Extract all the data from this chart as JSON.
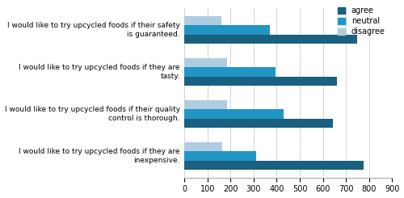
{
  "categories": [
    "I would like to try upcycled foods if their safety\nis guaranteed.",
    "I would like to try upcycled foods if they are\ntasty.",
    "I would like to try upcycled foods if their quality\ncontrol is thorough.",
    "I would like to try upcycled foods if they are\ninexpensive."
  ],
  "agree": [
    750,
    660,
    645,
    775
  ],
  "neutral": [
    370,
    395,
    430,
    310
  ],
  "disagree": [
    160,
    185,
    185,
    165
  ],
  "colors": {
    "agree": "#1a6080",
    "neutral": "#2196c4",
    "disagree": "#aecde0"
  },
  "xlim": [
    0,
    900
  ],
  "xticks": [
    0,
    100,
    200,
    300,
    400,
    500,
    600,
    700,
    800,
    900
  ],
  "bar_height": 0.22,
  "bar_spacing": 0.24
}
